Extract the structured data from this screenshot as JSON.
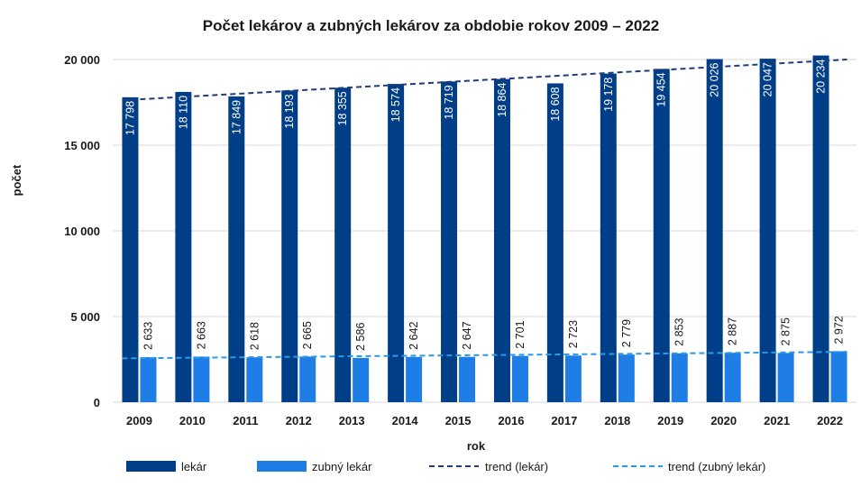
{
  "chart_data": {
    "type": "bar",
    "title": "Počet lekárov a zubných lekárov za obdobie rokov 2009 – 2022",
    "xlabel": "rok",
    "ylabel": "počet",
    "ylim": [
      0,
      20000
    ],
    "yticks": [
      0,
      5000,
      10000,
      15000,
      20000
    ],
    "ytick_labels": [
      "0",
      "5 000",
      "10 000",
      "15 000",
      "20 000"
    ],
    "categories": [
      "2009",
      "2010",
      "2011",
      "2012",
      "2013",
      "2014",
      "2015",
      "2016",
      "2017",
      "2018",
      "2019",
      "2020",
      "2021",
      "2022"
    ],
    "series": [
      {
        "name": "lekár",
        "color": "#003f87",
        "values": [
          17798,
          18110,
          17849,
          18193,
          18355,
          18574,
          18719,
          18864,
          18608,
          19178,
          19454,
          20026,
          20047,
          20234
        ],
        "labels": [
          "17 798",
          "18 110",
          "17 849",
          "18 193",
          "18 355",
          "18 574",
          "18 719",
          "18 864",
          "18 608",
          "19 178",
          "19 454",
          "20 026",
          "20 047",
          "20 234"
        ]
      },
      {
        "name": "zubný lekár",
        "color": "#1f7de6",
        "values": [
          2633,
          2663,
          2618,
          2665,
          2586,
          2642,
          2647,
          2701,
          2723,
          2779,
          2853,
          2887,
          2875,
          2972
        ],
        "labels": [
          "2 633",
          "2 663",
          "2 618",
          "2 665",
          "2 586",
          "2 642",
          "2 647",
          "2 701",
          "2 723",
          "2 779",
          "2 853",
          "2 887",
          "2 875",
          "2 972"
        ]
      }
    ],
    "trends": [
      {
        "name": "trend (lekár)",
        "color": "#1f3c7a",
        "style": "dashed",
        "start": 17620,
        "end": 20000
      },
      {
        "name": "trend (zubný lekár)",
        "color": "#2a9ae8",
        "style": "dashed",
        "start": 2560,
        "end": 2940
      }
    ],
    "grid": true,
    "legend_position": "bottom"
  }
}
